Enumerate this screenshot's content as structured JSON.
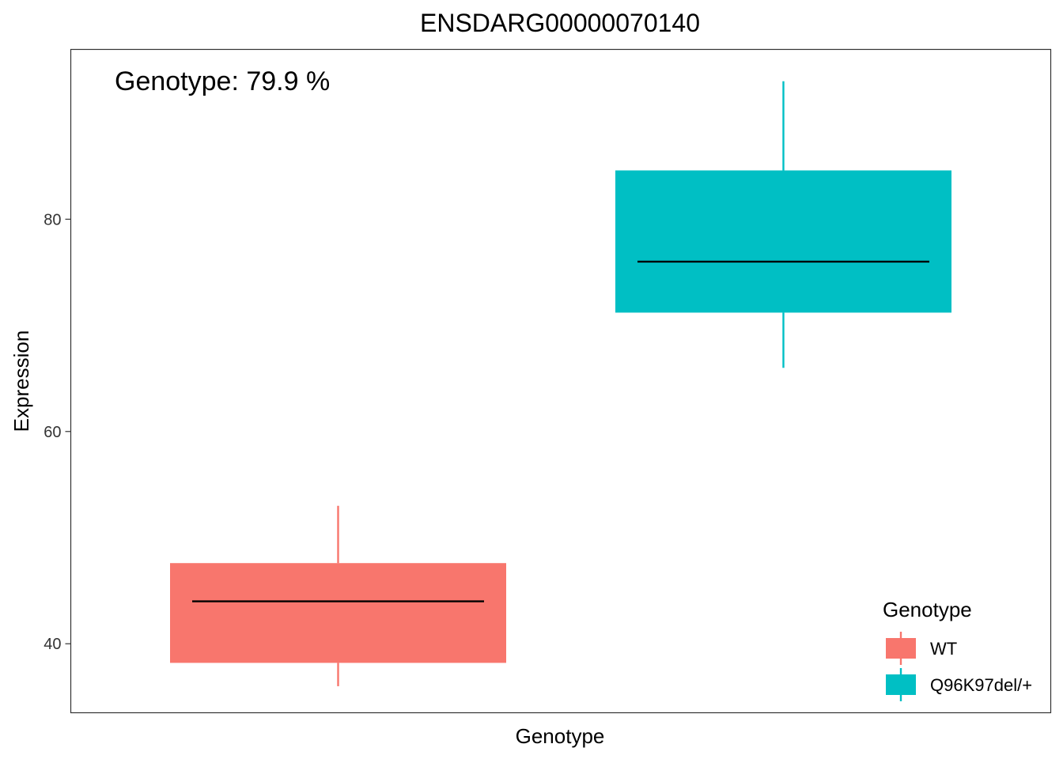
{
  "chart_data": {
    "type": "box",
    "title": "ENSDARG00000070140",
    "xlabel": "Genotype",
    "ylabel": "Expression",
    "annotation": "Genotype: 79.9 %",
    "ylim": [
      33.5,
      96
    ],
    "yticks": [
      {
        "value": 40,
        "label": "40"
      },
      {
        "value": 60,
        "label": "60"
      },
      {
        "value": 80,
        "label": "80"
      }
    ],
    "grid": false,
    "legend": {
      "title": "Genotype",
      "position": "bottom-right",
      "entries": [
        "WT",
        "Q96K97del/+"
      ]
    },
    "series": [
      {
        "name": "WT",
        "color": "#F8766D",
        "min": 36.0,
        "q1": 38.2,
        "median": 44.0,
        "q3": 47.6,
        "max": 53.0
      },
      {
        "name": "Q96K97del/+",
        "color": "#00BFC4",
        "min": 66.0,
        "q1": 71.2,
        "median": 76.0,
        "q3": 84.6,
        "max": 93.0
      }
    ]
  }
}
